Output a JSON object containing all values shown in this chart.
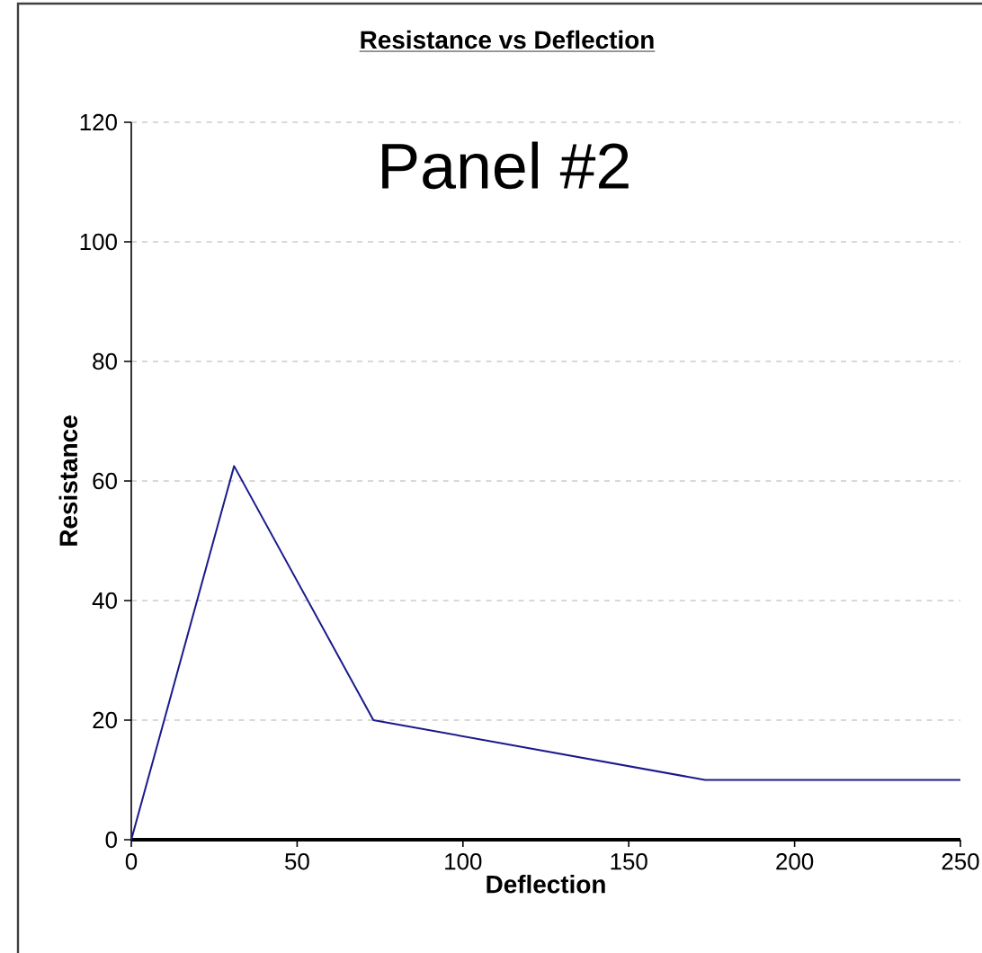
{
  "chart_data": {
    "type": "line",
    "title": "Resistance vs Deflection",
    "xlabel": "Deflection",
    "ylabel": "Resistance",
    "annotations": [
      "Panel #2"
    ],
    "x": [
      0,
      31,
      73,
      173,
      250
    ],
    "series": [
      {
        "color": "#1a1a8c",
        "values": [
          0,
          62.5,
          20,
          10,
          10
        ]
      }
    ],
    "xlim": [
      0,
      250
    ],
    "xticks": [
      0,
      50,
      100,
      150,
      200,
      250
    ],
    "ylim": [
      0,
      120
    ],
    "yticks": [
      0,
      20,
      40,
      60,
      80,
      100,
      120
    ],
    "grid": "y",
    "marker": "none",
    "line_style": "solid"
  }
}
